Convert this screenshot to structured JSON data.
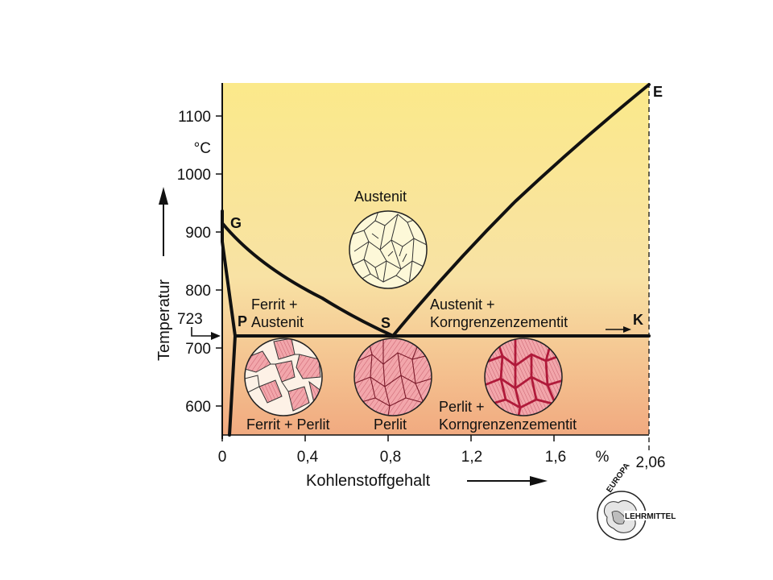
{
  "diagram": {
    "x_axis": {
      "title": "Kohlenstoffgehalt",
      "unit": "%",
      "tick_labels": [
        "0",
        "0,4",
        "0,8",
        "1,2",
        "1,6",
        "2,06"
      ]
    },
    "y_axis": {
      "title": "Temperatur",
      "unit": "°C",
      "tick_labels": [
        "600",
        "700",
        "800",
        "900",
        "1000",
        "1100"
      ],
      "marker_label": "723"
    },
    "points": {
      "G": "G",
      "P": "P",
      "S": "S",
      "E": "E",
      "K": "K"
    },
    "regions": {
      "austenit": "Austenit",
      "ferrit_austenit_1": "Ferrit +",
      "ferrit_austenit_2": "Austenit",
      "austenit_korn_1": "Austenit +",
      "austenit_korn_2": "Korngrenzenzementit",
      "ferrit_perlit": "Ferrit + Perlit",
      "perlit": "Perlit",
      "perlit_korn_1": "Perlit +",
      "perlit_korn_2": "Korngrenzenzementit"
    },
    "colors": {
      "top": "#fbe98a",
      "middle": "#f8e6a6",
      "bottom": "#f1aa80",
      "line": "#111111",
      "grain_austenit": "#fdf8d8",
      "grain_ferrit": "#fdf1e6",
      "grain_perlit": "#ef98a0",
      "grain_boundary_cementite": "#b01a3a"
    }
  },
  "logo": {
    "top_text": "EUROPA",
    "bottom_text": "LEHRMITTEL"
  }
}
